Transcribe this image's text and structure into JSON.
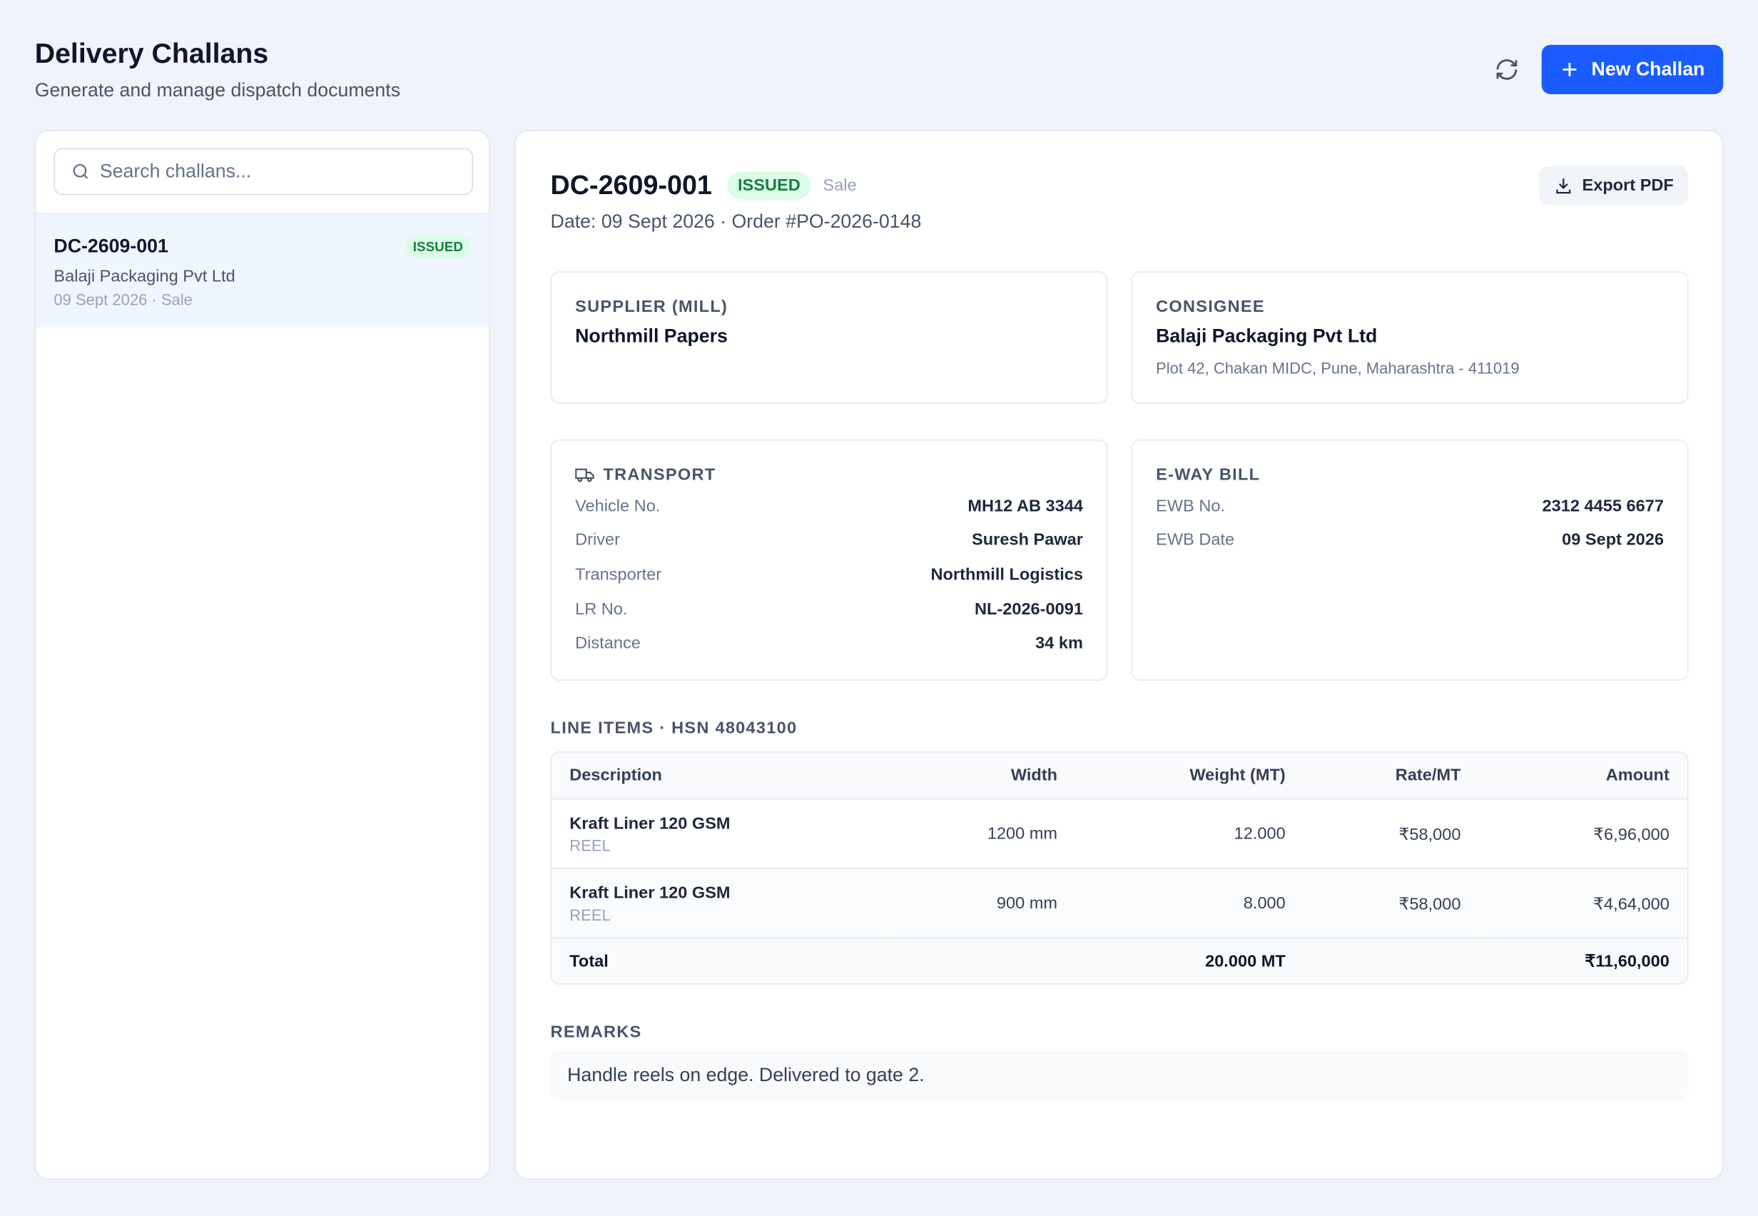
{
  "header": {
    "title": "Delivery Challans",
    "subtitle": "Generate and manage dispatch documents",
    "new_button": "New Challan"
  },
  "sidebar": {
    "search_placeholder": "Search challans...",
    "items": [
      {
        "id": "DC-2609-001",
        "status": "ISSUED",
        "party": "Balaji Packaging Pvt Ltd",
        "meta": "09 Sept 2026 · Sale"
      }
    ]
  },
  "detail": {
    "id": "DC-2609-001",
    "status": "ISSUED",
    "type": "Sale",
    "meta": "Date: 09 Sept 2026 · Order #PO-2026-0148",
    "export_button": "Export PDF",
    "supplier": {
      "label": "SUPPLIER (MILL)",
      "name": "Northmill Papers"
    },
    "consignee": {
      "label": "CONSIGNEE",
      "name": "Balaji Packaging Pvt Ltd",
      "address": "Plot 42, Chakan MIDC, Pune, Maharashtra - 411019"
    },
    "transport": {
      "title": "TRANSPORT",
      "rows": [
        [
          "Vehicle No.",
          "MH12 AB 3344"
        ],
        [
          "Driver",
          "Suresh Pawar"
        ],
        [
          "Transporter",
          "Northmill Logistics"
        ],
        [
          "LR No.",
          "NL-2026-0091"
        ],
        [
          "Distance",
          "34 km"
        ]
      ]
    },
    "eway": {
      "title": "E-WAY BILL",
      "rows": [
        [
          "EWB No.",
          "2312 4455 6677"
        ],
        [
          "EWB Date",
          "09 Sept 2026"
        ]
      ]
    },
    "line_items": {
      "title": "LINE ITEMS · HSN 48043100",
      "columns": [
        "Description",
        "Width",
        "Weight (MT)",
        "Rate/MT",
        "Amount"
      ],
      "rows": [
        {
          "description": "Kraft Liner 120 GSM",
          "form": "REEL",
          "width": "1200 mm",
          "weight": "12.000",
          "rate": "₹58,000",
          "amount": "₹6,96,000"
        },
        {
          "description": "Kraft Liner 120 GSM",
          "form": "REEL",
          "width": "900 mm",
          "weight": "8.000",
          "rate": "₹58,000",
          "amount": "₹4,64,000"
        }
      ],
      "total": {
        "label": "Total",
        "weight": "20.000 MT",
        "amount": "₹11,60,000"
      }
    },
    "remarks": {
      "title": "REMARKS",
      "text": "Handle reels on edge. Delivered to gate 2."
    }
  }
}
